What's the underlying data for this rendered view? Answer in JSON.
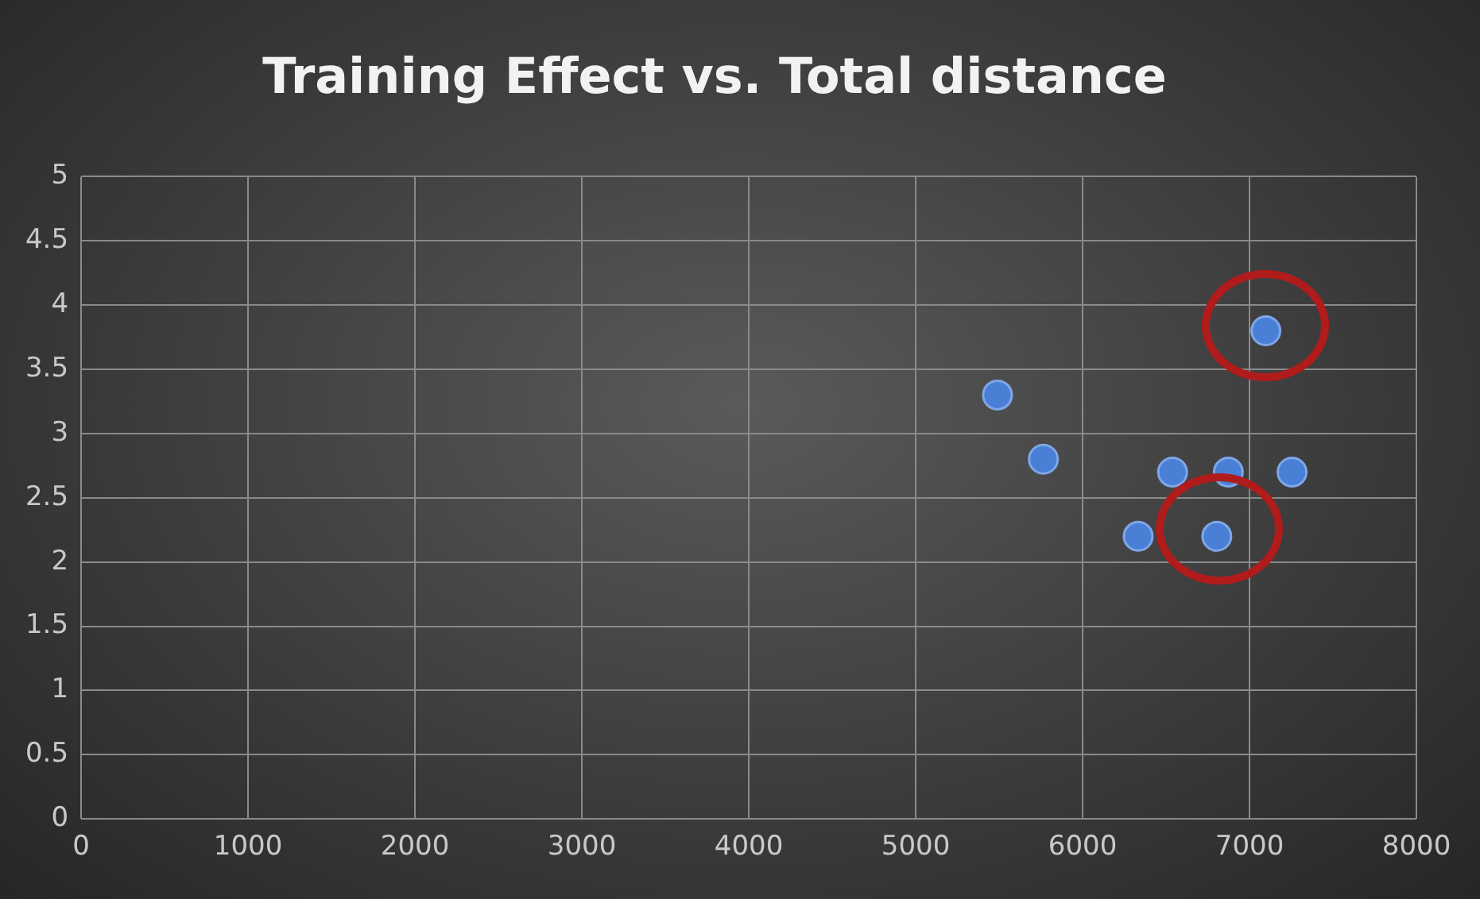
{
  "chart_data": {
    "type": "scatter",
    "title": "Training Effect vs. Total distance",
    "x": [
      5490,
      5765,
      6333,
      6539,
      6873,
      7255,
      6804,
      7098
    ],
    "series": [
      {
        "color": "#4a7fd6",
        "values": [
          3.3,
          2.8,
          2.2,
          2.7,
          2.7,
          2.7,
          2.2,
          3.8
        ]
      }
    ],
    "xlim": [
      0,
      8000
    ],
    "xticks": [
      0,
      1000,
      2000,
      3000,
      4000,
      5000,
      6000,
      7000,
      8000
    ],
    "ylim": [
      0,
      5
    ],
    "yticks": [
      0,
      0.5,
      1,
      1.5,
      2,
      2.5,
      3,
      3.5,
      4,
      4.5,
      5
    ],
    "grid": true,
    "legend": false,
    "marker": "circle"
  }
}
